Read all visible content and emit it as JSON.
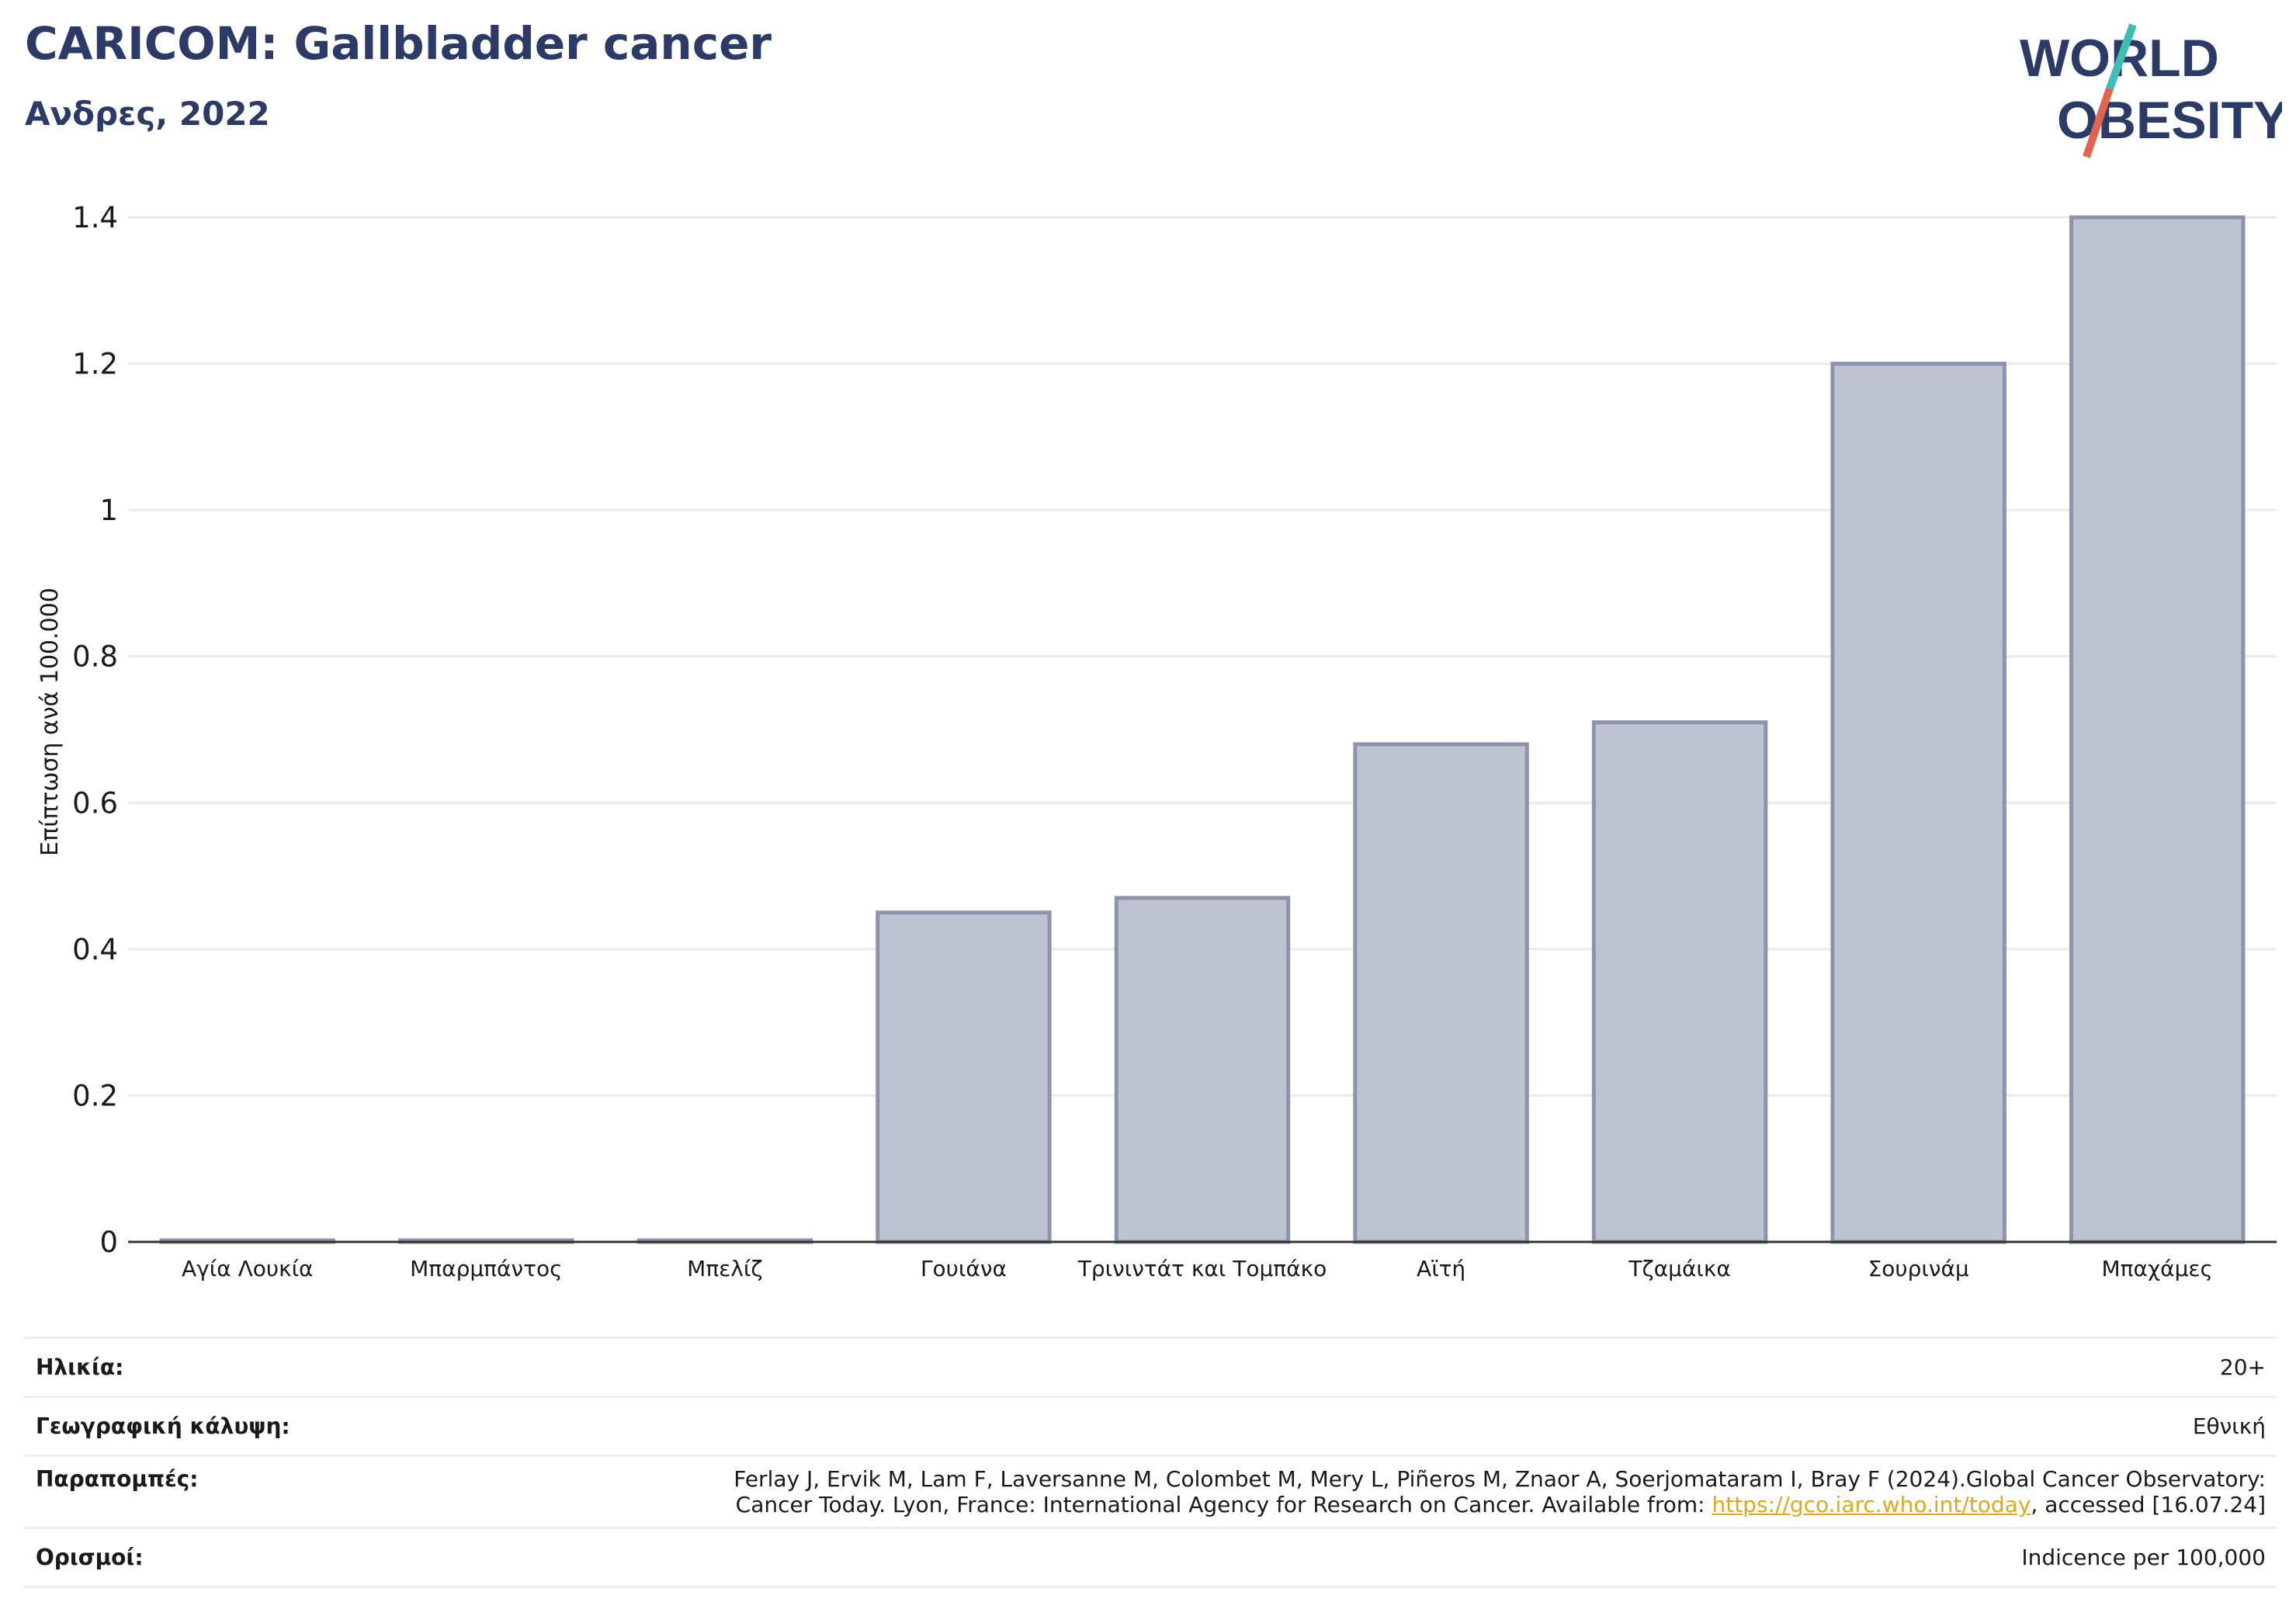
{
  "header": {
    "title": "CARICOM: Gallbladder cancer",
    "subtitle": "Ανδρες, 2022"
  },
  "logo": {
    "line1": "WORLD",
    "line2": "OBESITY",
    "colors": {
      "text": "#2b3a67",
      "slash_top": "#3dbdb3",
      "slash_bottom": "#e0644e"
    }
  },
  "chart_data": {
    "type": "bar",
    "categories": [
      "Αγία Λουκία",
      "Μπαρμπάντος",
      "Μπελίζ",
      "Γουιάνα",
      "Τρινιντάτ και Τομπάκο",
      "Αϊτή",
      "Τζαμάικα",
      "Σουρινάμ",
      "Μπαχάμες"
    ],
    "values": [
      0,
      0,
      0,
      0.45,
      0.47,
      0.68,
      0.71,
      1.2,
      1.4
    ],
    "ylabel": "Επίπτωση ανά 100.000",
    "xlabel": "",
    "ylim": [
      0,
      1.4
    ],
    "yticks": [
      0,
      0.2,
      0.4,
      0.6,
      0.8,
      1,
      1.2,
      1.4
    ],
    "ytick_labels": [
      "0",
      "0.2",
      "0.4",
      "0.6",
      "0.8",
      "1",
      "1.2",
      "1.4"
    ],
    "grid": true,
    "colors": {
      "bar_fill": "#bfc2cf",
      "bar_stroke": "#8d93aa",
      "grid": "#e8e9f0",
      "axis": "#333333"
    }
  },
  "info": {
    "age": {
      "label": "Ηλικία:",
      "value": "20+"
    },
    "coverage": {
      "label": "Γεωγραφική κάλυψη:",
      "value": "Εθνική"
    },
    "references": {
      "label": "Παραπομπές:",
      "line1": "Ferlay J, Ervik M, Lam F, Laversanne M, Colombet M, Mery L, Piñeros M, Znaor A, Soerjomataram I, Bray F (2024).Global Cancer Observatory:",
      "line2_before": "Cancer Today. Lyon, France: International Agency for Research on Cancer. Available from: ",
      "link": "https://gco.iarc.who.int/today",
      "line2_after": ", accessed [16.07.24]"
    },
    "definitions": {
      "label": "Ορισμοί:",
      "value": "Indicence per 100,000"
    }
  }
}
